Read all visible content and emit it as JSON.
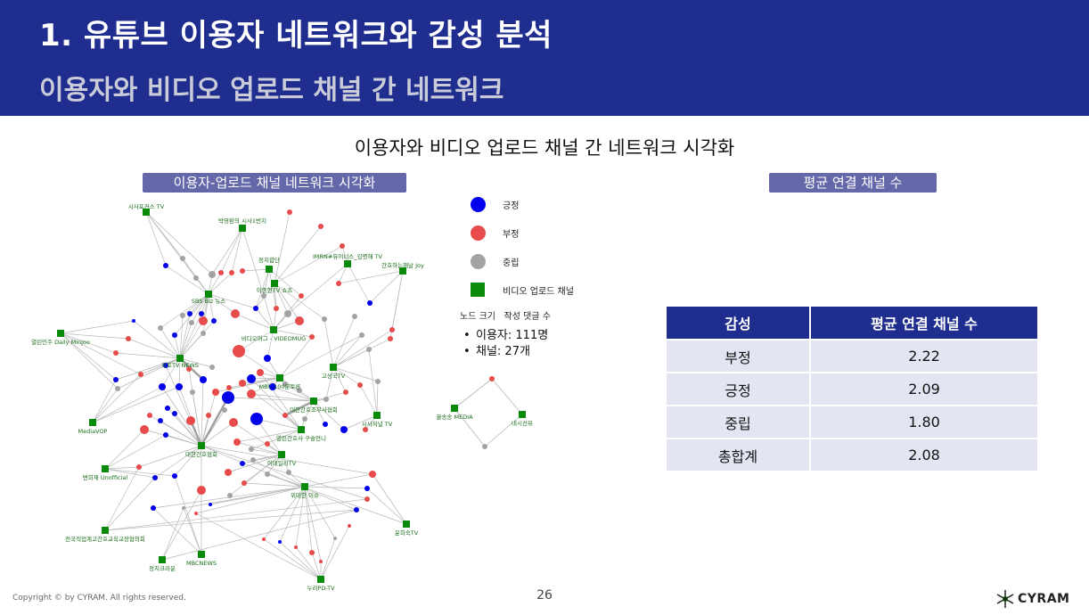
{
  "header": {
    "title": "1. 유튜브 이용자 네트워크와 감성 분석",
    "subtitle": "이용자와 비디오 업로드 채널 간 네트워크"
  },
  "main_heading": "이용자와 비디오 업로드 채널 간 네트워크 시각화",
  "network_pill": "이용자-업로드 채널 네트워크 시각화",
  "avg_pill": "평균 연결 채널 수",
  "legend": {
    "items": [
      {
        "label": "긍정",
        "color": "#0000ee",
        "shape": "circle"
      },
      {
        "label": "부정",
        "color": "#e84b4b",
        "shape": "circle"
      },
      {
        "label": "중립",
        "color": "#a3a3a3",
        "shape": "circle"
      },
      {
        "label": "비디오 업로드 채널",
        "color": "#0a8a0a",
        "shape": "square"
      }
    ],
    "node_size_label": "노드 크기",
    "node_size_value": "작성 댓글 수"
  },
  "stats": {
    "users": "이용자: 111명",
    "channels": "채널: 27개"
  },
  "avg_table": {
    "headers": [
      "감성",
      "평균 연결 채널 수"
    ],
    "rows": [
      [
        "부정",
        "2.22"
      ],
      [
        "긍정",
        "2.09"
      ],
      [
        "중립",
        "1.80"
      ],
      [
        "총합계",
        "2.08"
      ]
    ]
  },
  "network": {
    "channels": [
      "시사포커스 TV",
      "박영환의 시사1번지",
      "정치합단",
      "IMRN#뮤이너스_김명해 TV",
      "간호하는해날 Joy",
      "이종형TV 쇼츠",
      "SBS Biz 뉴스",
      "비디오머그 - VIDEOMUG",
      "열린민주 Daily Minjoo",
      "학토TV NEWS",
      "MBC 100분토론",
      "고성국TV",
      "대한간호조무사협회",
      "시사저널 TV",
      "MediaVOP",
      "열린간호사 구슬언니",
      "대한간호협회",
      "이데일리TV",
      "변희재 Unofficial",
      "위대한 이슈",
      "전국직업계고간호교육교장협의회",
      "MBCNEWS",
      "정치크라운",
      "윤희숙TV",
      "누리PD-TV",
      "꿀송송 MEDIA",
      "내시선뷰"
    ]
  },
  "footer": {
    "copyright": "Copyright © by CYRAM. All rights reserved.",
    "page": "26",
    "logo": "CYRAM"
  }
}
